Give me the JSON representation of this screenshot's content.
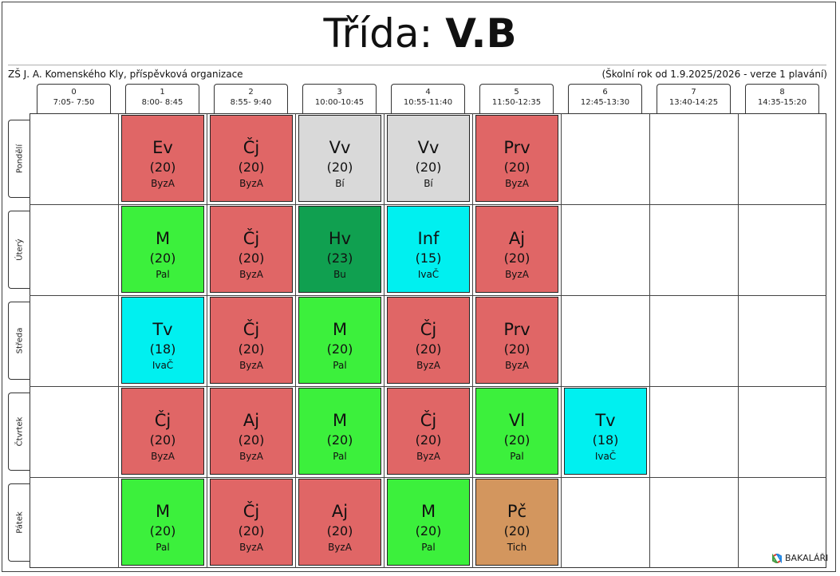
{
  "title": {
    "prefix": "Třída: ",
    "name": "V.B"
  },
  "header": {
    "school": "ZŠ J. A. Komenského Kly, příspěvková organizace",
    "year": "(Školní rok od 1.9.2025/2026 - verze 1 plavání)"
  },
  "periods": [
    {
      "num": "0",
      "time": "7:05- 7:50"
    },
    {
      "num": "1",
      "time": "8:00- 8:45"
    },
    {
      "num": "2",
      "time": "8:55- 9:40"
    },
    {
      "num": "3",
      "time": "10:00-10:45"
    },
    {
      "num": "4",
      "time": "10:55-11:40"
    },
    {
      "num": "5",
      "time": "11:50-12:35"
    },
    {
      "num": "6",
      "time": "12:45-13:30"
    },
    {
      "num": "7",
      "time": "13:40-14:25"
    },
    {
      "num": "8",
      "time": "14:35-15:20"
    }
  ],
  "days": [
    "Pondělí",
    "Úterý",
    "Středa",
    "Čtvrtek",
    "Pátek"
  ],
  "colors": {
    "red": "#e06666",
    "gray": "#d9d9d9",
    "green": "#3cf03c",
    "darkgreen": "#10a050",
    "cyan": "#00f0f0",
    "tan": "#d3965e"
  },
  "lessons": [
    {
      "day": 0,
      "period": 1,
      "subject": "Ev",
      "group": "(20)",
      "teacher": "ByzA",
      "color": "red"
    },
    {
      "day": 0,
      "period": 2,
      "subject": "Čj",
      "group": "(20)",
      "teacher": "ByzA",
      "color": "red"
    },
    {
      "day": 0,
      "period": 3,
      "subject": "Vv",
      "group": "(20)",
      "teacher": "Bí",
      "color": "gray"
    },
    {
      "day": 0,
      "period": 4,
      "subject": "Vv",
      "group": "(20)",
      "teacher": "Bí",
      "color": "gray"
    },
    {
      "day": 0,
      "period": 5,
      "subject": "Prv",
      "group": "(20)",
      "teacher": "ByzA",
      "color": "red"
    },
    {
      "day": 1,
      "period": 1,
      "subject": "M",
      "group": "(20)",
      "teacher": "Pal",
      "color": "green"
    },
    {
      "day": 1,
      "period": 2,
      "subject": "Čj",
      "group": "(20)",
      "teacher": "ByzA",
      "color": "red"
    },
    {
      "day": 1,
      "period": 3,
      "subject": "Hv",
      "group": "(23)",
      "teacher": "Bu",
      "color": "darkgreen"
    },
    {
      "day": 1,
      "period": 4,
      "subject": "Inf",
      "group": "(15)",
      "teacher": "IvaČ",
      "color": "cyan"
    },
    {
      "day": 1,
      "period": 5,
      "subject": "Aj",
      "group": "(20)",
      "teacher": "ByzA",
      "color": "red"
    },
    {
      "day": 2,
      "period": 1,
      "subject": "Tv",
      "group": "(18)",
      "teacher": "IvaČ",
      "color": "cyan"
    },
    {
      "day": 2,
      "period": 2,
      "subject": "Čj",
      "group": "(20)",
      "teacher": "ByzA",
      "color": "red"
    },
    {
      "day": 2,
      "period": 3,
      "subject": "M",
      "group": "(20)",
      "teacher": "Pal",
      "color": "green"
    },
    {
      "day": 2,
      "period": 4,
      "subject": "Čj",
      "group": "(20)",
      "teacher": "ByzA",
      "color": "red"
    },
    {
      "day": 2,
      "period": 5,
      "subject": "Prv",
      "group": "(20)",
      "teacher": "ByzA",
      "color": "red"
    },
    {
      "day": 3,
      "period": 1,
      "subject": "Čj",
      "group": "(20)",
      "teacher": "ByzA",
      "color": "red"
    },
    {
      "day": 3,
      "period": 2,
      "subject": "Aj",
      "group": "(20)",
      "teacher": "ByzA",
      "color": "red"
    },
    {
      "day": 3,
      "period": 3,
      "subject": "M",
      "group": "(20)",
      "teacher": "Pal",
      "color": "green"
    },
    {
      "day": 3,
      "period": 4,
      "subject": "Čj",
      "group": "(20)",
      "teacher": "ByzA",
      "color": "red"
    },
    {
      "day": 3,
      "period": 5,
      "subject": "Vl",
      "group": "(20)",
      "teacher": "Pal",
      "color": "green"
    },
    {
      "day": 3,
      "period": 6,
      "subject": "Tv",
      "group": "(18)",
      "teacher": "IvaČ",
      "color": "cyan"
    },
    {
      "day": 4,
      "period": 1,
      "subject": "M",
      "group": "(20)",
      "teacher": "Pal",
      "color": "green"
    },
    {
      "day": 4,
      "period": 2,
      "subject": "Čj",
      "group": "(20)",
      "teacher": "ByzA",
      "color": "red"
    },
    {
      "day": 4,
      "period": 3,
      "subject": "Aj",
      "group": "(20)",
      "teacher": "ByzA",
      "color": "red"
    },
    {
      "day": 4,
      "period": 4,
      "subject": "M",
      "group": "(20)",
      "teacher": "Pal",
      "color": "green"
    },
    {
      "day": 4,
      "period": 5,
      "subject": "Pč",
      "group": "(20)",
      "teacher": "Tich",
      "color": "tan"
    }
  ],
  "brand": {
    "label": "BAKALÁŘI",
    "icon": "bakalari-logo-icon"
  }
}
